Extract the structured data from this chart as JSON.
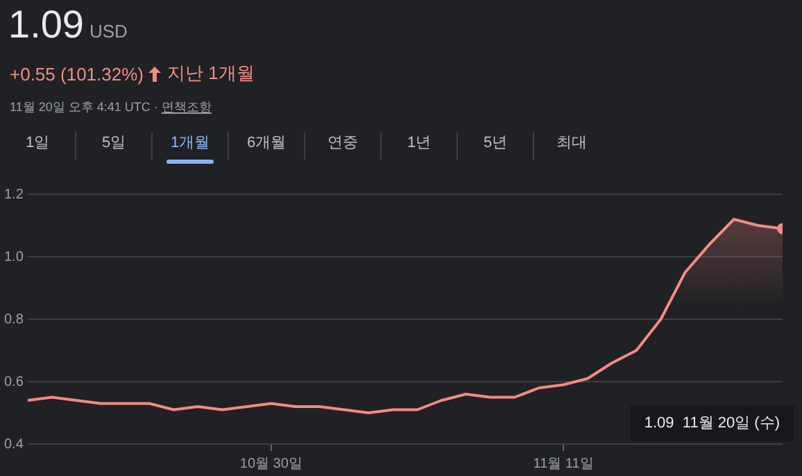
{
  "chart_data": {
    "type": "area",
    "title": "1.09",
    "subtitle": "USD",
    "annotations": [
      "+0.55 (101.32%)",
      "지난 1개월",
      "11월 20일 오후 4:41 UTC ·",
      "면책조항",
      "1일",
      "5일",
      "1개월",
      "6개월",
      "연중",
      "1년",
      "5년",
      "최대",
      "1.09  11월 20일 (수)"
    ],
    "x": [
      "--10-20",
      "--10-21",
      "--10-22",
      "--10-23",
      "--10-24",
      "--10-25",
      "--10-26",
      "--10-27",
      "--10-28",
      "--10-29",
      "--10-30",
      "--10-31",
      "--11-01",
      "--11-02",
      "--11-03",
      "--11-04",
      "--11-05",
      "--11-06",
      "--11-07",
      "--11-08",
      "--11-09",
      "--11-10",
      "--11-11",
      "--11-12",
      "--11-13",
      "--11-14",
      "--11-15",
      "--11-16",
      "--11-17",
      "--11-18",
      "--11-19",
      "--11-20"
    ],
    "series": [
      {
        "color": "#f28b82",
        "values": [
          0.54,
          0.55,
          0.54,
          0.53,
          0.53,
          0.53,
          0.51,
          0.52,
          0.51,
          0.52,
          0.53,
          0.52,
          0.52,
          0.51,
          0.5,
          0.51,
          0.51,
          0.54,
          0.56,
          0.55,
          0.55,
          0.58,
          0.59,
          0.61,
          0.66,
          0.7,
          0.8,
          0.95,
          1.04,
          1.12,
          1.1,
          1.09
        ]
      }
    ],
    "xlim": [
      "--10-20",
      "--11-20"
    ],
    "xticks": [
      {
        "value": "--10-30",
        "label": "10월 30일"
      },
      {
        "value": "--11-11",
        "label": "11월 11일"
      }
    ],
    "ylim": [
      0.4,
      1.2
    ],
    "yticks": [
      0.4,
      0.6,
      0.8,
      {
        "value": 1,
        "label": "1.0"
      },
      1.2
    ],
    "grid": "y"
  }
}
